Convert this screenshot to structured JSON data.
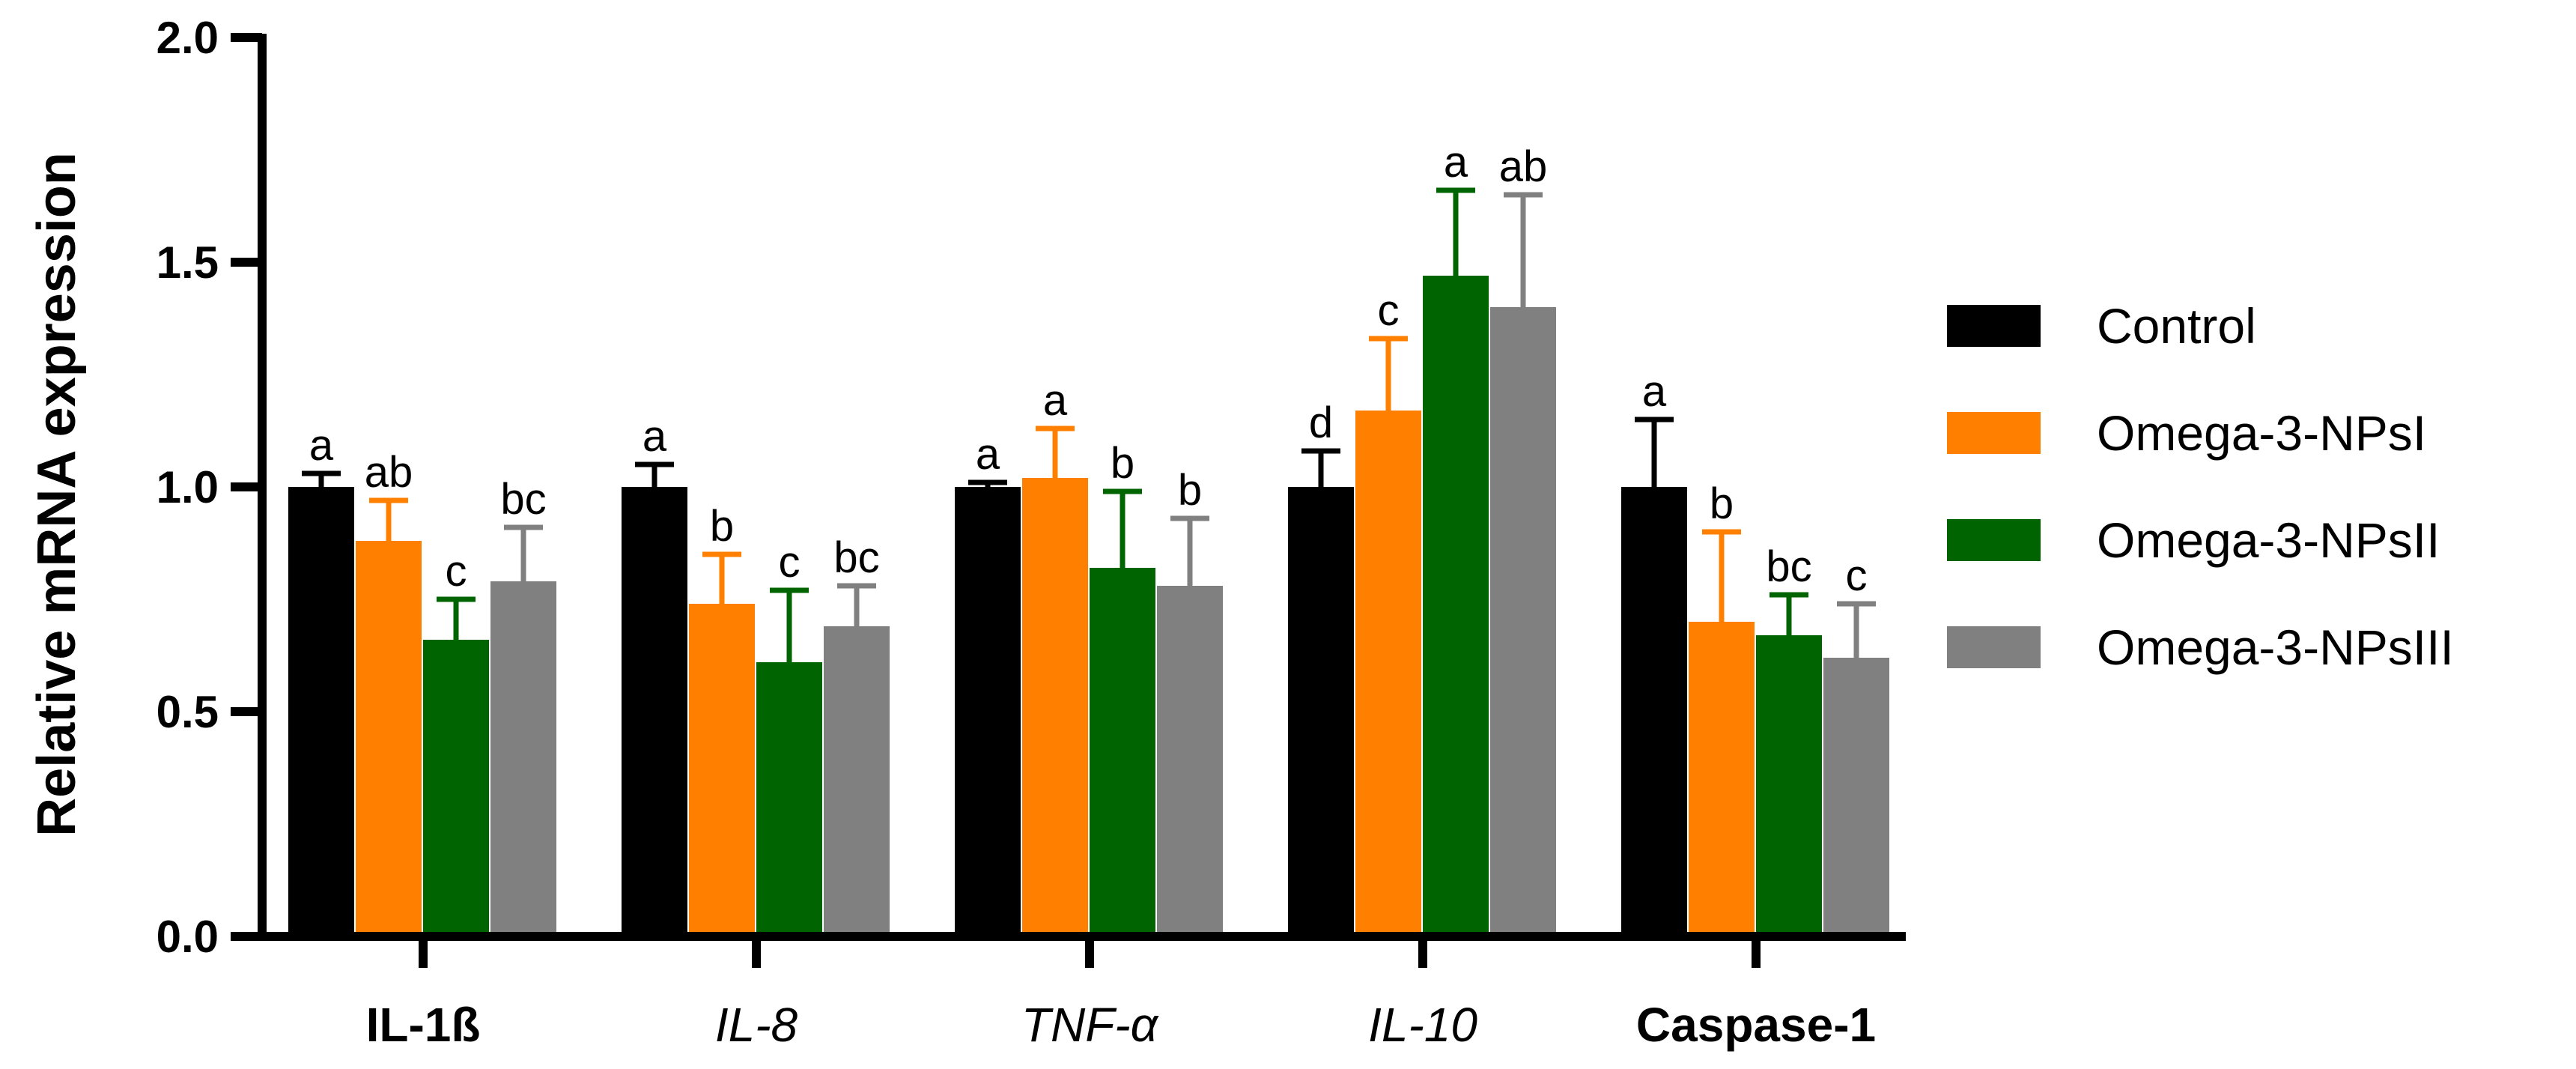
{
  "chart_data": {
    "type": "bar",
    "ylabel": "Relative mRNA expression",
    "ylim": [
      0,
      2.0
    ],
    "yticks": [
      "0.0",
      "0.5",
      "1.0",
      "1.5",
      "2.0"
    ],
    "categories": [
      {
        "label": "IL-1ß",
        "style": "bold"
      },
      {
        "label": "IL-8",
        "style": "italic"
      },
      {
        "label": "TNF-α",
        "style": "italic"
      },
      {
        "label": "IL-10",
        "style": "italic"
      },
      {
        "label": "Caspase-1",
        "style": "bold"
      }
    ],
    "series": [
      {
        "name": "Control",
        "color": "#000000",
        "values": [
          1.0,
          1.0,
          1.0,
          1.0,
          1.0
        ],
        "errors": [
          0.03,
          0.05,
          0.01,
          0.08,
          0.15
        ],
        "letters": [
          "a",
          "a",
          "a",
          "d",
          "a"
        ]
      },
      {
        "name": "Omega-3-NPsI",
        "color": "#ff8000",
        "values": [
          0.88,
          0.74,
          1.02,
          1.17,
          0.7
        ],
        "errors": [
          0.09,
          0.11,
          0.11,
          0.16,
          0.2
        ],
        "letters": [
          "ab",
          "b",
          "a",
          "c",
          "b"
        ]
      },
      {
        "name": "Omega-3-NPsII",
        "color": "#006400",
        "values": [
          0.66,
          0.61,
          0.82,
          1.47,
          0.67
        ],
        "errors": [
          0.09,
          0.16,
          0.17,
          0.19,
          0.09
        ],
        "letters": [
          "c",
          "c",
          "b",
          "a",
          "bc"
        ]
      },
      {
        "name": "Omega-3-NPsIII",
        "color": "#808080",
        "values": [
          0.79,
          0.69,
          0.78,
          1.4,
          0.62
        ],
        "errors": [
          0.12,
          0.09,
          0.15,
          0.25,
          0.12
        ],
        "letters": [
          "bc",
          "bc",
          "b",
          "ab",
          "c"
        ]
      }
    ],
    "legend_position": "right"
  }
}
